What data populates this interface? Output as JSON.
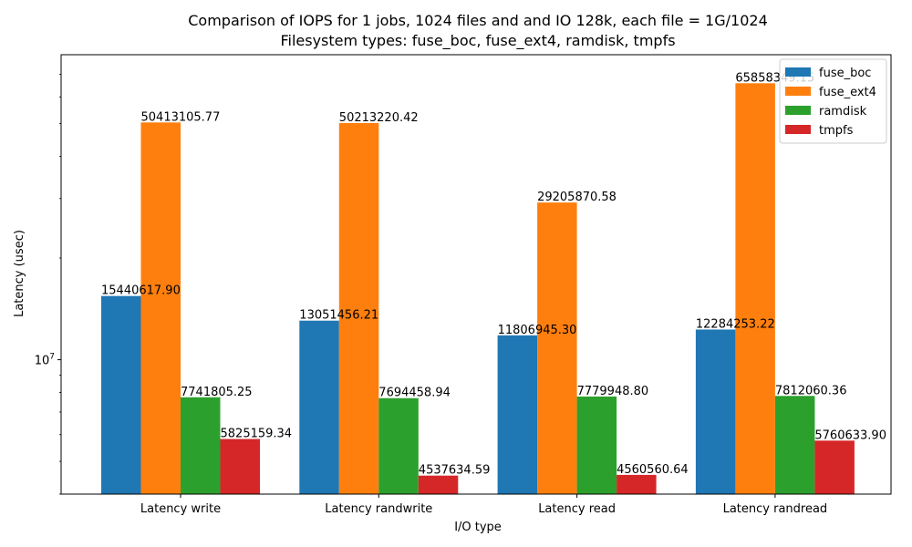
{
  "chart_data": {
    "type": "bar",
    "title_line1": "Comparison of IOPS for 1 jobs, 1024 files and  and IO 128k, each file = 1G/1024",
    "title_line2": "Filesystem types: fuse_boc, fuse_ext4, ramdisk, tmpfs",
    "xlabel": "I/O type",
    "ylabel": "Latency (usec)",
    "yscale": "log",
    "ylim": [
      4000000,
      80000000
    ],
    "ytick_label": "10",
    "ytick_exponent": "7",
    "ytick_value": 10000000,
    "legend_position": "top-right",
    "grid": false,
    "categories": [
      "Latency write",
      "Latency randwrite",
      "Latency read",
      "Latency randread"
    ],
    "series": [
      {
        "name": "fuse_boc",
        "color": "#1f77b4",
        "values": [
          15440617.9,
          13051456.21,
          11806945.3,
          12284253.22
        ],
        "labels": [
          "15440617.90",
          "13051456.21",
          "11806945.30",
          "12284253.22"
        ]
      },
      {
        "name": "fuse_ext4",
        "color": "#ff7f0e",
        "values": [
          50413105.77,
          50213220.42,
          29205870.58,
          65858349.15
        ],
        "labels": [
          "50413105.77",
          "50213220.42",
          "29205870.58",
          "65858349.15"
        ]
      },
      {
        "name": "ramdisk",
        "color": "#2ca02c",
        "values": [
          7741805.25,
          7694458.94,
          7779948.8,
          7812060.36
        ],
        "labels": [
          "7741805.25",
          "7694458.94",
          "7779948.80",
          "7812060.36"
        ]
      },
      {
        "name": "tmpfs",
        "color": "#d62728",
        "values": [
          5825159.34,
          4537634.59,
          4560560.64,
          5760633.9
        ],
        "labels": [
          "5825159.34",
          "4537634.59",
          "4560560.64",
          "5760633.90"
        ]
      }
    ]
  }
}
